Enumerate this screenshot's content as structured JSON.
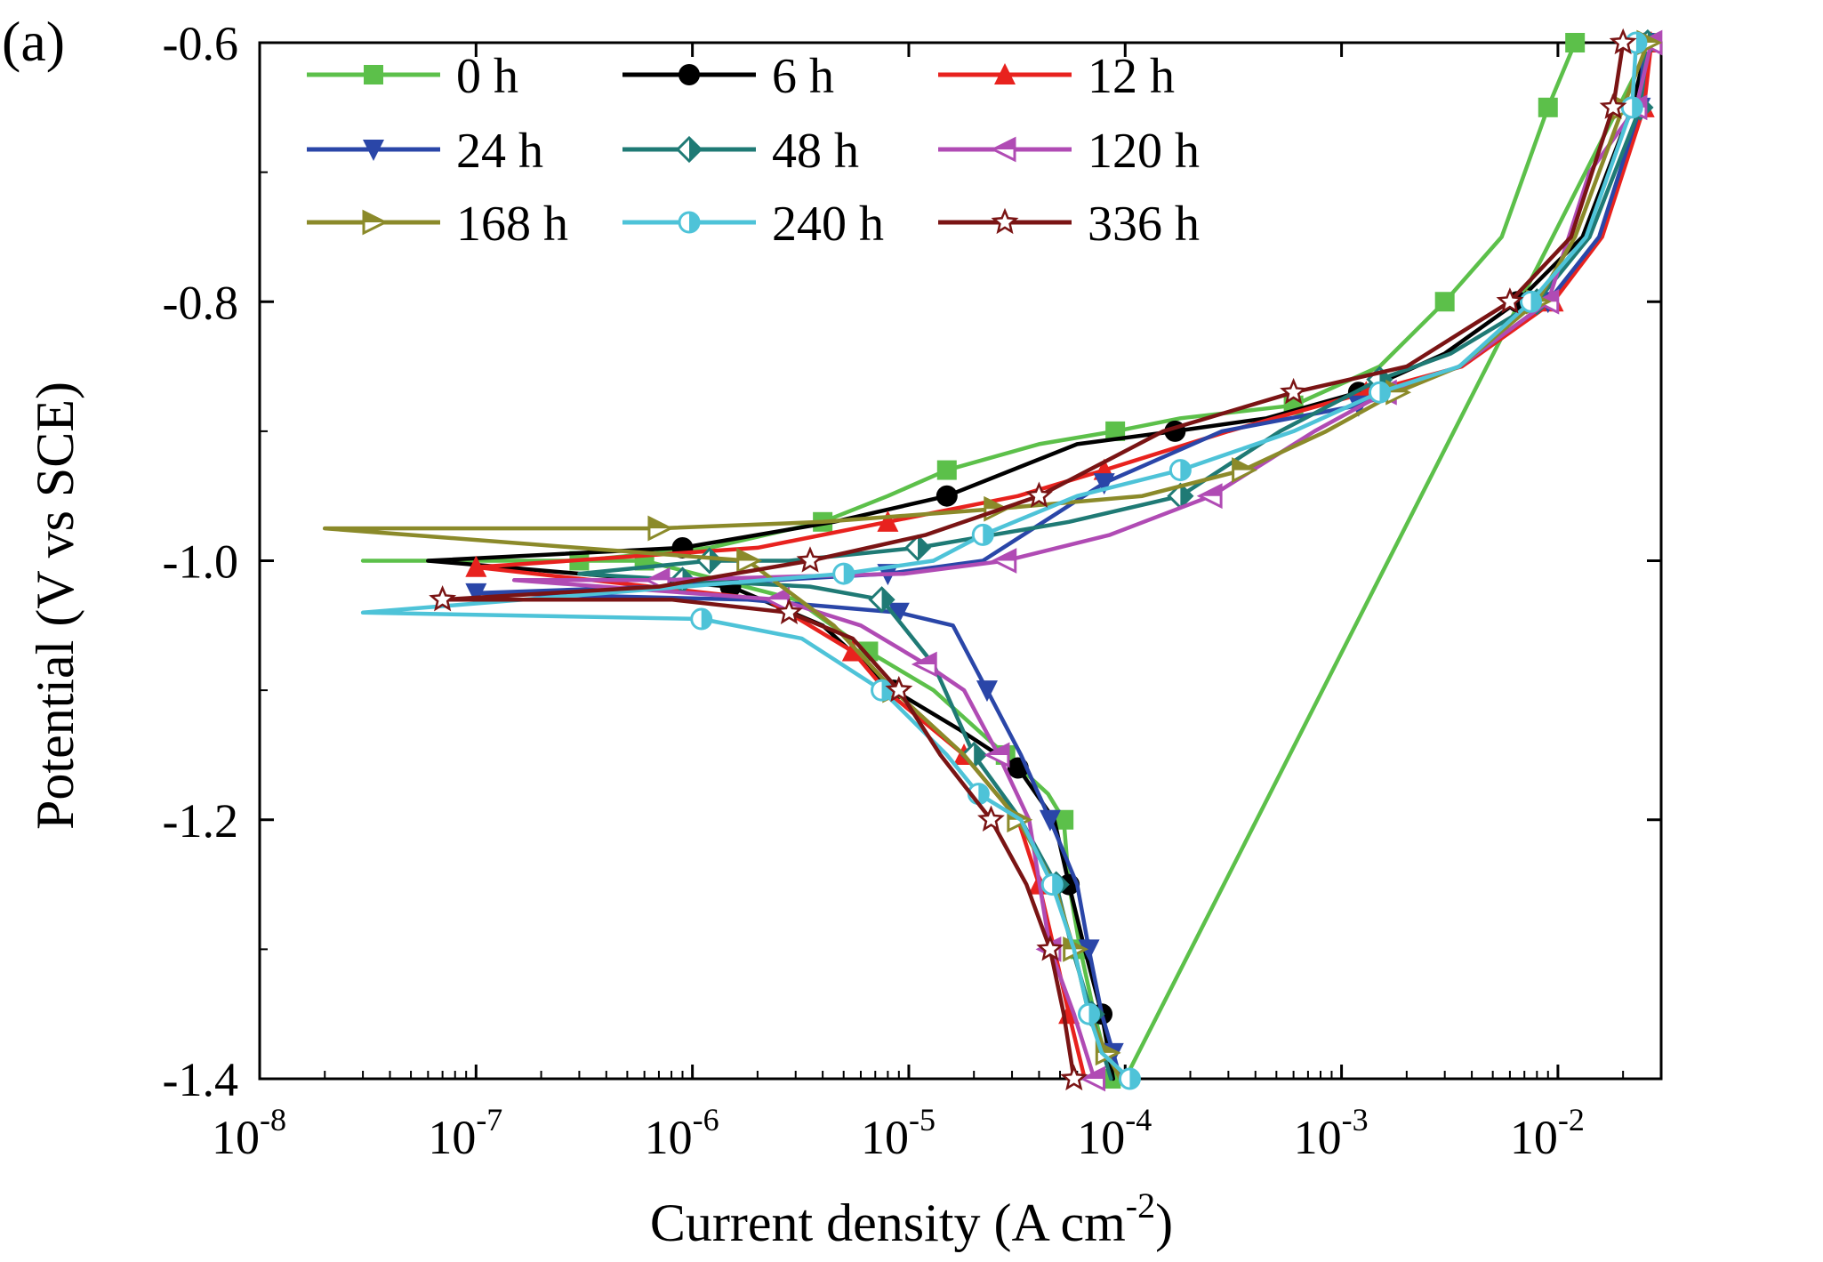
{
  "panel_label": "(a)",
  "chart_data": {
    "type": "line",
    "title": "",
    "xlabel": "Current density (A cm-2)",
    "xlabel_parts": {
      "text": "Current density (A cm",
      "sup": "-2",
      "close": ")"
    },
    "ylabel": "Potential (V vs SCE)",
    "x_scale": "log",
    "xlim": [
      1e-08,
      0.03
    ],
    "ylim": [
      -1.4,
      -0.6
    ],
    "x_tick_values": [
      1e-08,
      1e-07,
      1e-06,
      1e-05,
      0.0001,
      0.001,
      0.01
    ],
    "x_tick_labels": [
      {
        "base": "10",
        "exp": "-8"
      },
      {
        "base": "10",
        "exp": "-7"
      },
      {
        "base": "10",
        "exp": "-6"
      },
      {
        "base": "10",
        "exp": "-5"
      },
      {
        "base": "10",
        "exp": "-4"
      },
      {
        "base": "10",
        "exp": "-3"
      },
      {
        "base": "10",
        "exp": "-2"
      }
    ],
    "y_ticks": [
      -1.4,
      -1.2,
      -1.0,
      -0.8,
      -0.6
    ],
    "y_tick_labels": [
      "-1.4",
      "-1.2",
      "-1.0",
      "-0.8",
      "-0.6"
    ],
    "grid": false,
    "legend_position": "top-left",
    "series": [
      {
        "name": "0 h",
        "color": "#5cc04a",
        "marker": "square",
        "x": [
          0.012,
          0.009,
          0.0055,
          0.003,
          0.0015,
          0.0006,
          0.00018,
          9e-05,
          4e-05,
          1.5e-05,
          8e-06,
          4e-06,
          1.2e-06,
          3e-07,
          3e-08,
          6e-07,
          3e-06,
          6.5e-06,
          1.3e-05,
          2.8e-05,
          4.4e-05,
          5.2e-05,
          5.5e-05,
          6.2e-05,
          7.2e-05,
          8.6e-05,
          0.0001,
          0.027
        ],
        "y": [
          -0.6,
          -0.65,
          -0.75,
          -0.8,
          -0.85,
          -0.88,
          -0.89,
          -0.9,
          -0.91,
          -0.93,
          -0.95,
          -0.97,
          -0.99,
          -1.0,
          -1.0,
          -1.0,
          -1.03,
          -1.07,
          -1.1,
          -1.15,
          -1.18,
          -1.2,
          -1.25,
          -1.3,
          -1.35,
          -1.4,
          -1.4,
          -0.6
        ]
      },
      {
        "name": "6 h",
        "color": "#000000",
        "marker": "circle",
        "x": [
          0.026,
          0.022,
          0.013,
          0.0065,
          0.003,
          0.0012,
          0.00045,
          0.00017,
          6e-05,
          1.5e-05,
          4.5e-06,
          9e-07,
          6e-08,
          1.5e-06,
          4e-06,
          8.5e-06,
          1.7e-05,
          3.2e-05,
          4.7e-05,
          5.5e-05,
          6.5e-05,
          7.8e-05,
          8.8e-05
        ],
        "y": [
          -0.6,
          -0.65,
          -0.75,
          -0.8,
          -0.84,
          -0.87,
          -0.89,
          -0.9,
          -0.91,
          -0.95,
          -0.97,
          -0.99,
          -1.0,
          -1.02,
          -1.05,
          -1.1,
          -1.13,
          -1.16,
          -1.2,
          -1.25,
          -1.3,
          -1.35,
          -1.4
        ]
      },
      {
        "name": "12 h",
        "color": "#e8221e",
        "marker": "triangle-up",
        "x": [
          0.027,
          0.025,
          0.016,
          0.0095,
          0.0036,
          0.0013,
          0.0003,
          8e-05,
          3.2e-05,
          8e-06,
          2e-06,
          1e-07,
          2.2e-06,
          5.5e-06,
          7.8e-06,
          1.8e-05,
          3.2e-05,
          4e-05,
          4.7e-05,
          5.5e-05,
          6.5e-05
        ],
        "y": [
          -0.6,
          -0.65,
          -0.75,
          -0.8,
          -0.85,
          -0.87,
          -0.9,
          -0.93,
          -0.95,
          -0.97,
          -0.99,
          -1.005,
          -1.03,
          -1.07,
          -1.1,
          -1.15,
          -1.2,
          -1.25,
          -1.3,
          -1.35,
          -1.4
        ]
      },
      {
        "name": "24 h",
        "color": "#2a46a8",
        "marker": "triangle-down",
        "x": [
          0.025,
          0.024,
          0.0155,
          0.009,
          0.0035,
          0.0012,
          0.00028,
          8e-05,
          2.2e-05,
          8e-06,
          7e-07,
          1e-07,
          1.8e-06,
          9e-06,
          1.6e-05,
          2.3e-05,
          3.3e-05,
          4.5e-05,
          6e-05,
          6.8e-05,
          7.8e-05,
          8.8e-05,
          9.5e-05
        ],
        "y": [
          -0.6,
          -0.65,
          -0.75,
          -0.8,
          -0.85,
          -0.88,
          -0.9,
          -0.94,
          -1.0,
          -1.01,
          -1.02,
          -1.025,
          -1.03,
          -1.04,
          -1.05,
          -1.1,
          -1.15,
          -1.2,
          -1.25,
          -1.3,
          -1.35,
          -1.38,
          -1.4
        ]
      },
      {
        "name": "48 h",
        "color": "#1f7a75",
        "marker": "diamond-half",
        "x": [
          0.026,
          0.024,
          0.014,
          0.008,
          0.0032,
          0.0015,
          0.00052,
          0.00018,
          5.5e-05,
          1.1e-05,
          2.8e-06,
          1.2e-06,
          3e-07,
          9e-07,
          3.5e-06,
          7.5e-06,
          1.3e-05,
          2e-05,
          3.3e-05,
          4.8e-05,
          5.7e-05,
          7e-05,
          8.6e-05
        ],
        "y": [
          -0.6,
          -0.65,
          -0.75,
          -0.8,
          -0.84,
          -0.86,
          -0.9,
          -0.95,
          -0.97,
          -0.99,
          -1.0,
          -1.0,
          -1.01,
          -1.015,
          -1.02,
          -1.03,
          -1.08,
          -1.15,
          -1.2,
          -1.25,
          -1.3,
          -1.35,
          -1.4
        ]
      },
      {
        "name": "120 h",
        "color": "#b04bb4",
        "marker": "triangle-left",
        "x": [
          0.027,
          0.023,
          0.014,
          0.009,
          0.0035,
          0.0016,
          0.00075,
          0.00025,
          8.5e-05,
          2.8e-05,
          9.5e-06,
          7e-07,
          1.5e-07,
          2.5e-06,
          6e-06,
          1.2e-05,
          1.8e-05,
          2.6e-05,
          3.6e-05,
          4.5e-05,
          5.8e-05,
          7.2e-05
        ],
        "y": [
          -0.6,
          -0.65,
          -0.7,
          -0.8,
          -0.85,
          -0.87,
          -0.9,
          -0.95,
          -0.98,
          -1.0,
          -1.01,
          -1.015,
          -1.015,
          -1.03,
          -1.05,
          -1.08,
          -1.1,
          -1.15,
          -1.2,
          -1.3,
          -1.35,
          -1.4
        ]
      },
      {
        "name": "168 h",
        "color": "#8b8a2a",
        "marker": "triangle-right",
        "x": [
          0.026,
          0.02,
          0.012,
          0.008,
          0.0035,
          0.0018,
          0.00085,
          0.00035,
          0.00012,
          2.5e-05,
          4e-06,
          7e-07,
          2e-08,
          1.8e-06,
          4.5e-06,
          8.5e-06,
          1.8e-05,
          3.2e-05,
          4.7e-05,
          5.8e-05,
          6.8e-05,
          8.2e-05,
          9.5e-05
        ],
        "y": [
          -0.6,
          -0.65,
          -0.75,
          -0.8,
          -0.85,
          -0.87,
          -0.9,
          -0.93,
          -0.95,
          -0.96,
          -0.97,
          -0.975,
          -0.975,
          -1.0,
          -1.05,
          -1.1,
          -1.15,
          -1.2,
          -1.25,
          -1.3,
          -1.35,
          -1.38,
          -1.4
        ]
      },
      {
        "name": "240 h",
        "color": "#4ec3d8",
        "marker": "circle-half",
        "x": [
          0.023,
          0.022,
          0.0135,
          0.0075,
          0.0035,
          0.0015,
          0.0006,
          0.00018,
          6e-05,
          2.2e-05,
          1.3e-05,
          5e-06,
          3e-08,
          1.1e-06,
          3.2e-06,
          7.5e-06,
          1.5e-05,
          2.1e-05,
          3.3e-05,
          4.6e-05,
          5.8e-05,
          6.8e-05,
          7.8e-05,
          0.000105
        ],
        "y": [
          -0.6,
          -0.65,
          -0.75,
          -0.8,
          -0.85,
          -0.87,
          -0.9,
          -0.93,
          -0.95,
          -0.98,
          -1.0,
          -1.01,
          -1.04,
          -1.045,
          -1.06,
          -1.1,
          -1.15,
          -1.18,
          -1.2,
          -1.25,
          -1.3,
          -1.35,
          -1.38,
          -1.4
        ]
      },
      {
        "name": "336 h",
        "color": "#7a1414",
        "marker": "star",
        "x": [
          0.02,
          0.018,
          0.0115,
          0.006,
          0.002,
          0.0006,
          0.00015,
          4e-05,
          1.2e-05,
          3.5e-06,
          7e-07,
          7e-08,
          8e-07,
          2.8e-06,
          5.5e-06,
          9e-06,
          1.4e-05,
          2.4e-05,
          3.5e-05,
          4.5e-05,
          5.2e-05,
          5.8e-05
        ],
        "y": [
          -0.6,
          -0.65,
          -0.75,
          -0.8,
          -0.85,
          -0.87,
          -0.9,
          -0.95,
          -0.98,
          -1.0,
          -1.02,
          -1.03,
          -1.03,
          -1.04,
          -1.06,
          -1.1,
          -1.15,
          -1.2,
          -1.25,
          -1.3,
          -1.35,
          -1.4
        ]
      }
    ]
  }
}
